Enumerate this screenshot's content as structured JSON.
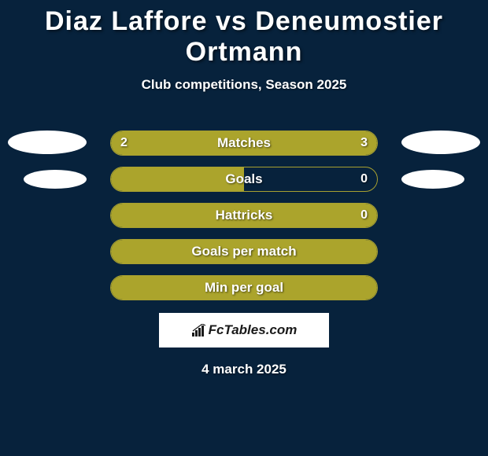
{
  "title": "Diaz Laffore vs Deneumostier Ortmann",
  "subtitle": "Club competitions, Season 2025",
  "date": "4 march 2025",
  "brand": "FcTables.com",
  "colors": {
    "background": "#07223c",
    "bar_fill": "#aba42c",
    "bar_border": "#a8a030",
    "text": "#ffffff",
    "ellipse": "#ffffff",
    "brand_bg": "#ffffff",
    "brand_text": "#1a1a1a"
  },
  "rows": [
    {
      "label": "Matches",
      "left_value": "2",
      "right_value": "3",
      "left_pct": 40,
      "right_pct": 60,
      "show_ellipses": true,
      "ellipse_size": "large"
    },
    {
      "label": "Goals",
      "left_value": "",
      "right_value": "0",
      "left_pct": 50,
      "right_pct": 0,
      "show_ellipses": true,
      "ellipse_size": "small"
    },
    {
      "label": "Hattricks",
      "left_value": "",
      "right_value": "0",
      "left_pct": 0,
      "right_pct": 0,
      "show_ellipses": false,
      "full_fill": true
    },
    {
      "label": "Goals per match",
      "left_value": "",
      "right_value": "",
      "left_pct": 0,
      "right_pct": 0,
      "show_ellipses": false,
      "full_fill": true
    },
    {
      "label": "Min per goal",
      "left_value": "",
      "right_value": "",
      "left_pct": 0,
      "right_pct": 0,
      "show_ellipses": false,
      "full_fill": true
    }
  ]
}
